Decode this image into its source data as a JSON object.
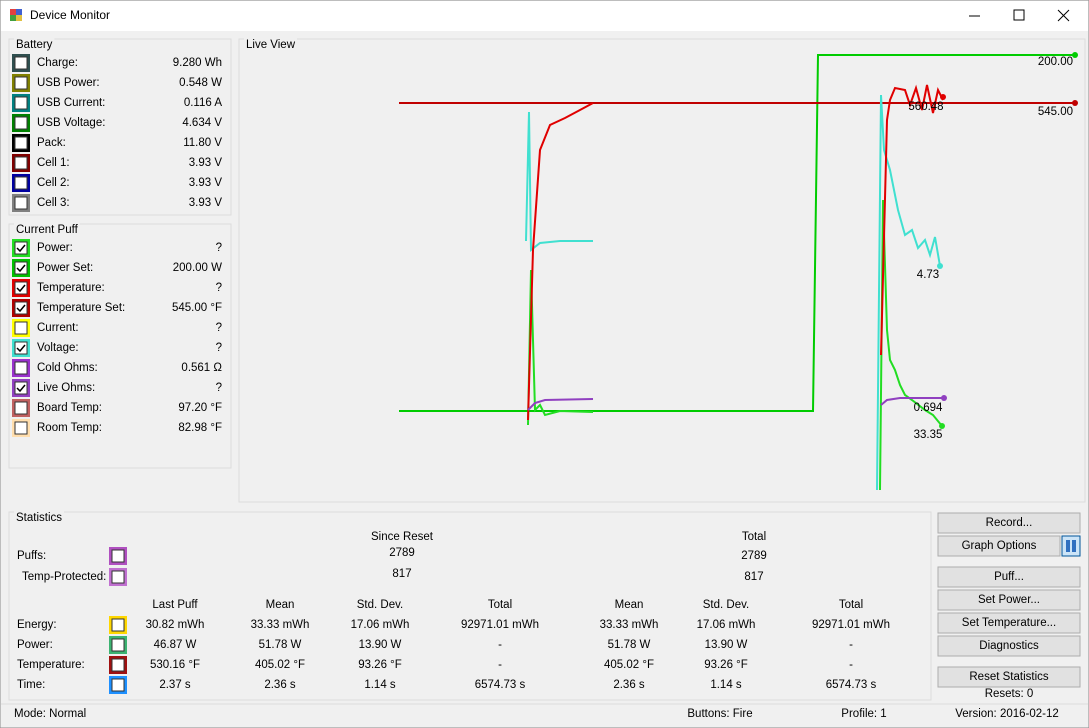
{
  "window": {
    "title": "Device Monitor"
  },
  "battery": {
    "title": "Battery",
    "rows": [
      {
        "label": "Charge:",
        "value": "9.280 Wh",
        "color": "#2f4f4f"
      },
      {
        "label": "USB Power:",
        "value": "0.548 W",
        "color": "#808000"
      },
      {
        "label": "USB Current:",
        "value": "0.116 A",
        "color": "#008080"
      },
      {
        "label": "USB Voltage:",
        "value": "4.634 V",
        "color": "#008000"
      },
      {
        "label": "Pack:",
        "value": "11.80 V",
        "color": "#000000"
      },
      {
        "label": "Cell 1:",
        "value": "3.93 V",
        "color": "#800000"
      },
      {
        "label": "Cell 2:",
        "value": "3.93 V",
        "color": "#0000a0"
      },
      {
        "label": "Cell 3:",
        "value": "3.93 V",
        "color": "#808080"
      }
    ]
  },
  "current_puff": {
    "title": "Current Puff",
    "rows": [
      {
        "label": "Power:",
        "value": "?",
        "color": "#22dd22",
        "checked": true
      },
      {
        "label": "Power Set:",
        "value": "200.00 W",
        "color": "#00c000",
        "checked": true
      },
      {
        "label": "Temperature:",
        "value": "?",
        "color": "#e00000",
        "checked": true
      },
      {
        "label": "Temperature Set:",
        "value": "545.00 °F",
        "color": "#b00000",
        "checked": true
      },
      {
        "label": "Current:",
        "value": "?",
        "color": "#ffff00",
        "checked": false
      },
      {
        "label": "Voltage:",
        "value": "?",
        "color": "#40e0d0",
        "checked": true
      },
      {
        "label": "Cold Ohms:",
        "value": "0.561 Ω",
        "color": "#9932cc",
        "checked": false
      },
      {
        "label": "Live Ohms:",
        "value": "?",
        "color": "#9040c0",
        "checked": true
      },
      {
        "label": "Board Temp:",
        "value": "97.20 °F",
        "color": "#c06060",
        "checked": false
      },
      {
        "label": "Room Temp:",
        "value": "82.98 °F",
        "color": "#ffdead",
        "checked": false
      }
    ]
  },
  "live_view": {
    "title": "Live View",
    "labels": [
      "200.00",
      "545.00",
      "560.48",
      "4.73",
      "0.694",
      "33.35"
    ]
  },
  "statistics": {
    "title": "Statistics",
    "since_reset": "Since Reset",
    "total": "Total",
    "puffs": {
      "label": "Puffs:",
      "since_reset": "2789",
      "total": "2789",
      "color": "#b050c0"
    },
    "temp_protected": {
      "label": "Temp-Protected:",
      "since_reset": "817",
      "total": "817",
      "color": "#c070d0"
    },
    "columns": [
      "Last Puff",
      "Mean",
      "Std. Dev.",
      "Total",
      "Mean",
      "Std. Dev.",
      "Total"
    ],
    "rows": [
      {
        "label": "Energy:",
        "color": "#ffd700",
        "cells": [
          "30.82 mWh",
          "33.33 mWh",
          "17.06 mWh",
          "92971.01 mWh",
          "33.33 mWh",
          "17.06 mWh",
          "92971.01 mWh"
        ]
      },
      {
        "label": "Power:",
        "color": "#3cb371",
        "cells": [
          "46.87 W",
          "51.78 W",
          "13.90 W",
          "-",
          "51.78 W",
          "13.90 W",
          "-"
        ]
      },
      {
        "label": "Temperature:",
        "color": "#a01010",
        "cells": [
          "530.16 °F",
          "405.02 °F",
          "93.26 °F",
          "-",
          "405.02 °F",
          "93.26 °F",
          "-"
        ]
      },
      {
        "label": "Time:",
        "color": "#1e90ff",
        "cells": [
          "2.37 s",
          "2.36 s",
          "1.14 s",
          "6574.73 s",
          "2.36 s",
          "1.14 s",
          "6574.73 s"
        ]
      }
    ]
  },
  "buttons": [
    "Record...",
    "Graph Options",
    "Puff...",
    "Set Power...",
    "Set Temperature...",
    "Diagnostics",
    "Reset Statistics"
  ],
  "resets": "Resets: 0",
  "status": {
    "mode": "Mode: Normal",
    "buttons": "Buttons: Fire",
    "profile": "Profile: 1",
    "version": "Version: 2016-02-12"
  }
}
